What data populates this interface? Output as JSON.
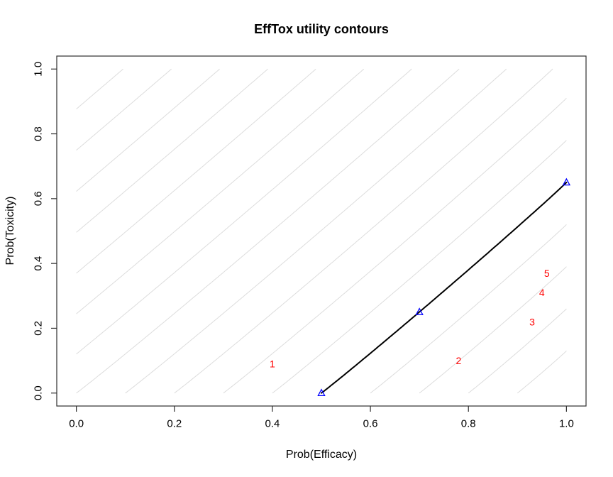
{
  "chart_data": {
    "type": "line",
    "title": "EffTox utility contours",
    "xlabel": "Prob(Efficacy)",
    "ylabel": "Prob(Toxicity)",
    "xlim": [
      0,
      1
    ],
    "ylim": [
      0,
      1
    ],
    "grid": false,
    "x_ticks": {
      "values": [
        0,
        0.2,
        0.4,
        0.6,
        0.8,
        1.0
      ],
      "labels": [
        "0.0",
        "0.2",
        "0.4",
        "0.6",
        "0.8",
        "1.0"
      ]
    },
    "y_ticks": {
      "values": [
        0,
        0.2,
        0.4,
        0.6,
        0.8,
        1.0
      ],
      "labels": [
        "0.0",
        "0.2",
        "0.4",
        "0.6",
        "0.8",
        "1.0"
      ]
    },
    "contours": {
      "family": "((1-eff)/(1-eff_floor))^p + (tox/tox_ceiling)^p = level^p",
      "p": 0.978,
      "eff_floor": 0.5,
      "tox_ceiling": 0.65,
      "levels": [
        0.2,
        0.4,
        0.6,
        0.8,
        1.0,
        1.2,
        1.4,
        1.6,
        1.8,
        2.0,
        2.2,
        2.4,
        2.6,
        2.8,
        3.0,
        3.2,
        3.4
      ],
      "color": "#dcdcdc"
    },
    "target_contour": {
      "level": 1.0,
      "color": "#000000",
      "anchor_points": [
        {
          "eff": 0.5,
          "tox": 0.0
        },
        {
          "eff": 0.7,
          "tox": 0.25
        },
        {
          "eff": 1.0,
          "tox": 0.65
        }
      ]
    },
    "markers": {
      "symbol": "open-triangle",
      "color": "#0000ff",
      "points": [
        {
          "eff": 0.5,
          "tox": 0.0
        },
        {
          "eff": 0.7,
          "tox": 0.25
        },
        {
          "eff": 1.0,
          "tox": 0.65
        }
      ]
    },
    "dose_labels": {
      "color": "#ff0000",
      "points": [
        {
          "label": "1",
          "eff": 0.4,
          "tox": 0.09
        },
        {
          "label": "2",
          "eff": 0.78,
          "tox": 0.1
        },
        {
          "label": "3",
          "eff": 0.93,
          "tox": 0.22
        },
        {
          "label": "4",
          "eff": 0.95,
          "tox": 0.31
        },
        {
          "label": "5",
          "eff": 0.96,
          "tox": 0.37
        }
      ]
    },
    "colors": {
      "axis": "#2e2e2e",
      "tick_text": "#000000"
    }
  }
}
